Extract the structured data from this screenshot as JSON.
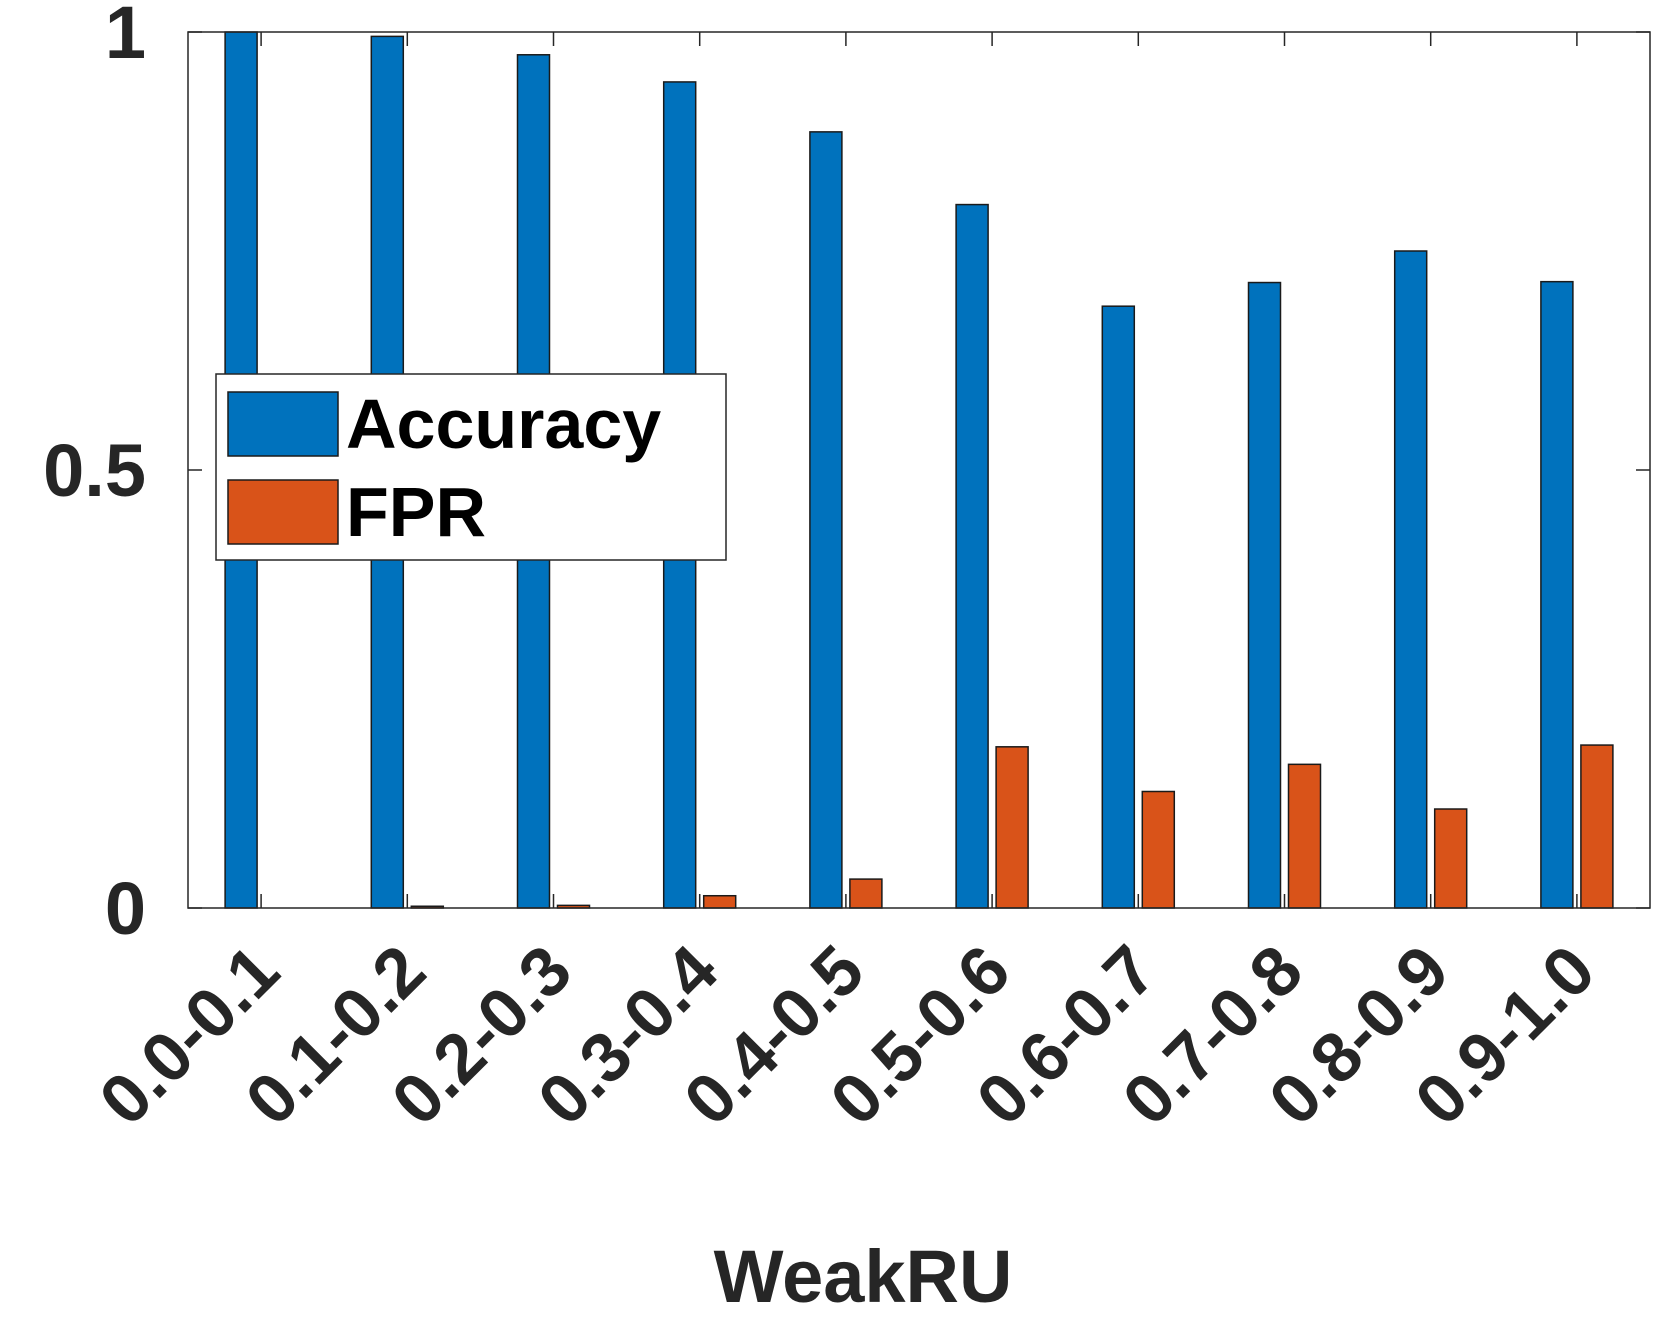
{
  "chart_data": {
    "type": "bar",
    "title": "",
    "xlabel": "WeakRU",
    "ylabel": "",
    "categories": [
      "0.0-0.1",
      "0.1-0.2",
      "0.2-0.3",
      "0.3-0.4",
      "0.4-0.5",
      "0.5-0.6",
      "0.6-0.7",
      "0.7-0.8",
      "0.8-0.9",
      "0.9-1.0"
    ],
    "series": [
      {
        "name": "Accuracy",
        "color": "#0072BD",
        "values": [
          1.0,
          0.995,
          0.974,
          0.943,
          0.886,
          0.803,
          0.687,
          0.714,
          0.75,
          0.715
        ]
      },
      {
        "name": "FPR",
        "color": "#D95319",
        "values": [
          0.0,
          0.002,
          0.003,
          0.014,
          0.033,
          0.184,
          0.133,
          0.164,
          0.113,
          0.186
        ]
      }
    ],
    "ylim": [
      0,
      1
    ],
    "yticks": [
      {
        "value": 0,
        "label": "0"
      },
      {
        "value": 0.5,
        "label": "0.5"
      },
      {
        "value": 1,
        "label": "1"
      }
    ],
    "grid": false,
    "legend_position": "left"
  }
}
